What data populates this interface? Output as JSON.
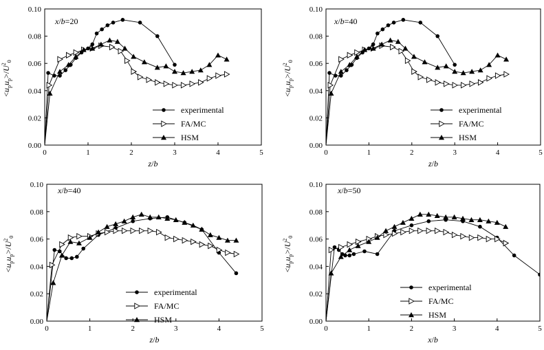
{
  "colors": {
    "line": "#000000",
    "background": "#ffffff"
  },
  "chart_data": [
    {
      "type": "line",
      "annotation": "x/b=20",
      "xlabel": "z/b",
      "ylabel": "<upup>/U0^2",
      "xlim": [
        0,
        5
      ],
      "ylim": [
        0,
        0.1
      ],
      "xticks": [
        "0",
        "1",
        "2",
        "3",
        "4",
        "5"
      ],
      "yticks": [
        "0.00",
        "0.02",
        "0.04",
        "0.06",
        "0.08",
        "0.10"
      ],
      "legend_position": "lower-right",
      "series": [
        {
          "name": "experimental",
          "marker": "circle",
          "x": [
            0.0,
            0.08,
            0.22,
            0.35,
            0.48,
            0.6,
            0.72,
            0.85,
            1.0,
            1.1,
            1.2,
            1.32,
            1.45,
            1.58,
            1.8,
            2.2,
            2.6,
            3.0
          ],
          "y": [
            0.0,
            0.053,
            0.051,
            0.051,
            0.055,
            0.059,
            0.064,
            0.068,
            0.071,
            0.074,
            0.082,
            0.085,
            0.088,
            0.09,
            0.092,
            0.09,
            0.08,
            0.059
          ]
        },
        {
          "name": "FA/MC",
          "marker": "triangle-right",
          "x": [
            0.0,
            0.1,
            0.35,
            0.55,
            0.72,
            0.9,
            1.1,
            1.3,
            1.55,
            1.75,
            1.9,
            2.05,
            2.2,
            2.4,
            2.6,
            2.8,
            3.0,
            3.2,
            3.4,
            3.6,
            3.8,
            4.0,
            4.2
          ],
          "y": [
            0.0,
            0.044,
            0.063,
            0.066,
            0.068,
            0.07,
            0.071,
            0.073,
            0.072,
            0.069,
            0.062,
            0.054,
            0.05,
            0.048,
            0.046,
            0.045,
            0.044,
            0.044,
            0.045,
            0.046,
            0.049,
            0.051,
            0.052
          ]
        },
        {
          "name": "HSM",
          "marker": "triangle-up",
          "x": [
            0.0,
            0.12,
            0.35,
            0.55,
            0.72,
            0.9,
            1.1,
            1.3,
            1.5,
            1.68,
            1.85,
            2.05,
            2.3,
            2.6,
            2.8,
            3.0,
            3.2,
            3.4,
            3.6,
            3.8,
            4.0,
            4.2
          ],
          "y": [
            0.0,
            0.038,
            0.054,
            0.059,
            0.065,
            0.07,
            0.071,
            0.074,
            0.077,
            0.076,
            0.071,
            0.065,
            0.061,
            0.057,
            0.058,
            0.054,
            0.053,
            0.054,
            0.055,
            0.059,
            0.066,
            0.063
          ]
        }
      ]
    },
    {
      "type": "line",
      "annotation": "x/b=40",
      "xlabel": "z/b",
      "ylabel": "<upup>/U0^2",
      "xlim": [
        0,
        5
      ],
      "ylim": [
        0,
        0.1
      ],
      "xticks": [
        "0",
        "1",
        "2",
        "3",
        "4",
        "5"
      ],
      "yticks": [
        "0.00",
        "0.02",
        "0.04",
        "0.06",
        "0.08",
        "0.10"
      ],
      "legend_position": "lower-right",
      "series": [
        {
          "name": "experimental",
          "marker": "circle",
          "x": [
            0.0,
            0.08,
            0.22,
            0.35,
            0.48,
            0.6,
            0.72,
            0.85,
            1.0,
            1.1,
            1.2,
            1.32,
            1.45,
            1.58,
            1.8,
            2.2,
            2.6,
            3.0
          ],
          "y": [
            0.0,
            0.053,
            0.051,
            0.051,
            0.055,
            0.059,
            0.064,
            0.068,
            0.071,
            0.074,
            0.082,
            0.085,
            0.088,
            0.09,
            0.092,
            0.09,
            0.08,
            0.059
          ]
        },
        {
          "name": "FA/MC",
          "marker": "triangle-right",
          "x": [
            0.0,
            0.1,
            0.35,
            0.55,
            0.72,
            0.9,
            1.1,
            1.3,
            1.55,
            1.75,
            1.9,
            2.05,
            2.2,
            2.4,
            2.6,
            2.8,
            3.0,
            3.2,
            3.4,
            3.6,
            3.8,
            4.0,
            4.2
          ],
          "y": [
            0.0,
            0.044,
            0.063,
            0.066,
            0.068,
            0.07,
            0.071,
            0.073,
            0.072,
            0.069,
            0.062,
            0.054,
            0.05,
            0.048,
            0.046,
            0.045,
            0.044,
            0.044,
            0.045,
            0.046,
            0.049,
            0.051,
            0.052
          ]
        },
        {
          "name": "HSM",
          "marker": "triangle-up",
          "x": [
            0.0,
            0.12,
            0.35,
            0.55,
            0.72,
            0.9,
            1.1,
            1.3,
            1.5,
            1.68,
            1.85,
            2.05,
            2.3,
            2.6,
            2.8,
            3.0,
            3.2,
            3.4,
            3.6,
            3.8,
            4.0,
            4.2
          ],
          "y": [
            0.0,
            0.038,
            0.054,
            0.059,
            0.065,
            0.07,
            0.071,
            0.074,
            0.077,
            0.076,
            0.071,
            0.065,
            0.061,
            0.057,
            0.058,
            0.054,
            0.053,
            0.054,
            0.055,
            0.059,
            0.066,
            0.063
          ]
        }
      ]
    },
    {
      "type": "line",
      "annotation": "x/b=40",
      "xlabel": "z/b",
      "ylabel": "<upup>/U0^2",
      "xlim": [
        0,
        5
      ],
      "ylim": [
        0,
        0.1
      ],
      "xticks": [
        "0",
        "1",
        "2",
        "3",
        "4",
        "5"
      ],
      "yticks": [
        "0.00",
        "0.02",
        "0.04",
        "0.06",
        "0.08",
        "0.10"
      ],
      "legend_position": "lower-center",
      "series": [
        {
          "name": "experimental",
          "marker": "circle",
          "x": [
            0.0,
            0.18,
            0.3,
            0.45,
            0.58,
            0.7,
            0.85,
            1.2,
            1.6,
            2.0,
            2.4,
            2.8,
            3.2,
            3.6,
            4.0,
            4.4
          ],
          "y": [
            0.0,
            0.052,
            0.051,
            0.046,
            0.046,
            0.047,
            0.053,
            0.063,
            0.068,
            0.073,
            0.075,
            0.076,
            0.072,
            0.067,
            0.05,
            0.035
          ]
        },
        {
          "name": "FA/MC",
          "marker": "triangle-right",
          "x": [
            0.0,
            0.12,
            0.35,
            0.55,
            0.75,
            1.0,
            1.2,
            1.4,
            1.6,
            1.8,
            2.0,
            2.2,
            2.4,
            2.6,
            2.8,
            3.0,
            3.2,
            3.4,
            3.6,
            3.8,
            4.0,
            4.2,
            4.4
          ],
          "y": [
            0.0,
            0.041,
            0.056,
            0.061,
            0.062,
            0.062,
            0.064,
            0.065,
            0.066,
            0.066,
            0.066,
            0.066,
            0.066,
            0.065,
            0.061,
            0.06,
            0.059,
            0.058,
            0.056,
            0.055,
            0.052,
            0.05,
            0.049
          ]
        },
        {
          "name": "HSM",
          "marker": "triangle-up",
          "x": [
            0.0,
            0.15,
            0.35,
            0.55,
            0.75,
            1.0,
            1.2,
            1.4,
            1.6,
            1.8,
            2.0,
            2.2,
            2.4,
            2.6,
            2.8,
            3.0,
            3.2,
            3.4,
            3.6,
            3.8,
            4.0,
            4.2,
            4.4
          ],
          "y": [
            0.0,
            0.028,
            0.048,
            0.058,
            0.057,
            0.061,
            0.065,
            0.069,
            0.071,
            0.073,
            0.076,
            0.078,
            0.076,
            0.076,
            0.075,
            0.074,
            0.072,
            0.07,
            0.067,
            0.063,
            0.061,
            0.059,
            0.059
          ]
        }
      ]
    },
    {
      "type": "line",
      "annotation": "x/b=50",
      "xlabel": "x/b",
      "ylabel": "<upup>/U0^2",
      "xlim": [
        0,
        5
      ],
      "ylim": [
        0,
        0.1
      ],
      "xticks": [
        "0",
        "1",
        "2",
        "3",
        "4",
        "5"
      ],
      "yticks": [
        "0.00",
        "0.02",
        "0.04",
        "0.06",
        "0.08",
        "0.10"
      ],
      "legend_position": "lower-center",
      "series": [
        {
          "name": "experimental",
          "marker": "circle",
          "x": [
            0.0,
            0.2,
            0.3,
            0.38,
            0.45,
            0.55,
            0.65,
            0.9,
            1.2,
            1.6,
            2.0,
            2.4,
            2.8,
            3.2,
            3.6,
            4.0,
            4.4,
            5.0
          ],
          "y": [
            0.0,
            0.054,
            0.052,
            0.049,
            0.048,
            0.048,
            0.049,
            0.051,
            0.049,
            0.066,
            0.07,
            0.073,
            0.074,
            0.073,
            0.069,
            0.061,
            0.048,
            0.034
          ]
        },
        {
          "name": "FA/MC",
          "marker": "triangle-right",
          "x": [
            0.0,
            0.12,
            0.35,
            0.55,
            0.75,
            1.0,
            1.2,
            1.4,
            1.6,
            1.8,
            2.0,
            2.2,
            2.4,
            2.6,
            2.8,
            3.0,
            3.2,
            3.4,
            3.6,
            3.8,
            4.0,
            4.2
          ],
          "y": [
            0.0,
            0.052,
            0.054,
            0.056,
            0.058,
            0.06,
            0.062,
            0.063,
            0.064,
            0.065,
            0.066,
            0.066,
            0.066,
            0.066,
            0.065,
            0.063,
            0.062,
            0.061,
            0.061,
            0.06,
            0.06,
            0.057
          ]
        },
        {
          "name": "HSM",
          "marker": "triangle-up",
          "x": [
            0.0,
            0.12,
            0.35,
            0.55,
            0.75,
            1.0,
            1.2,
            1.4,
            1.6,
            1.8,
            2.0,
            2.2,
            2.4,
            2.6,
            2.8,
            3.0,
            3.2,
            3.4,
            3.6,
            3.8,
            4.0,
            4.2
          ],
          "y": [
            0.0,
            0.035,
            0.047,
            0.052,
            0.055,
            0.058,
            0.061,
            0.066,
            0.069,
            0.072,
            0.075,
            0.078,
            0.078,
            0.077,
            0.076,
            0.076,
            0.075,
            0.074,
            0.074,
            0.073,
            0.072,
            0.069
          ]
        }
      ]
    }
  ]
}
